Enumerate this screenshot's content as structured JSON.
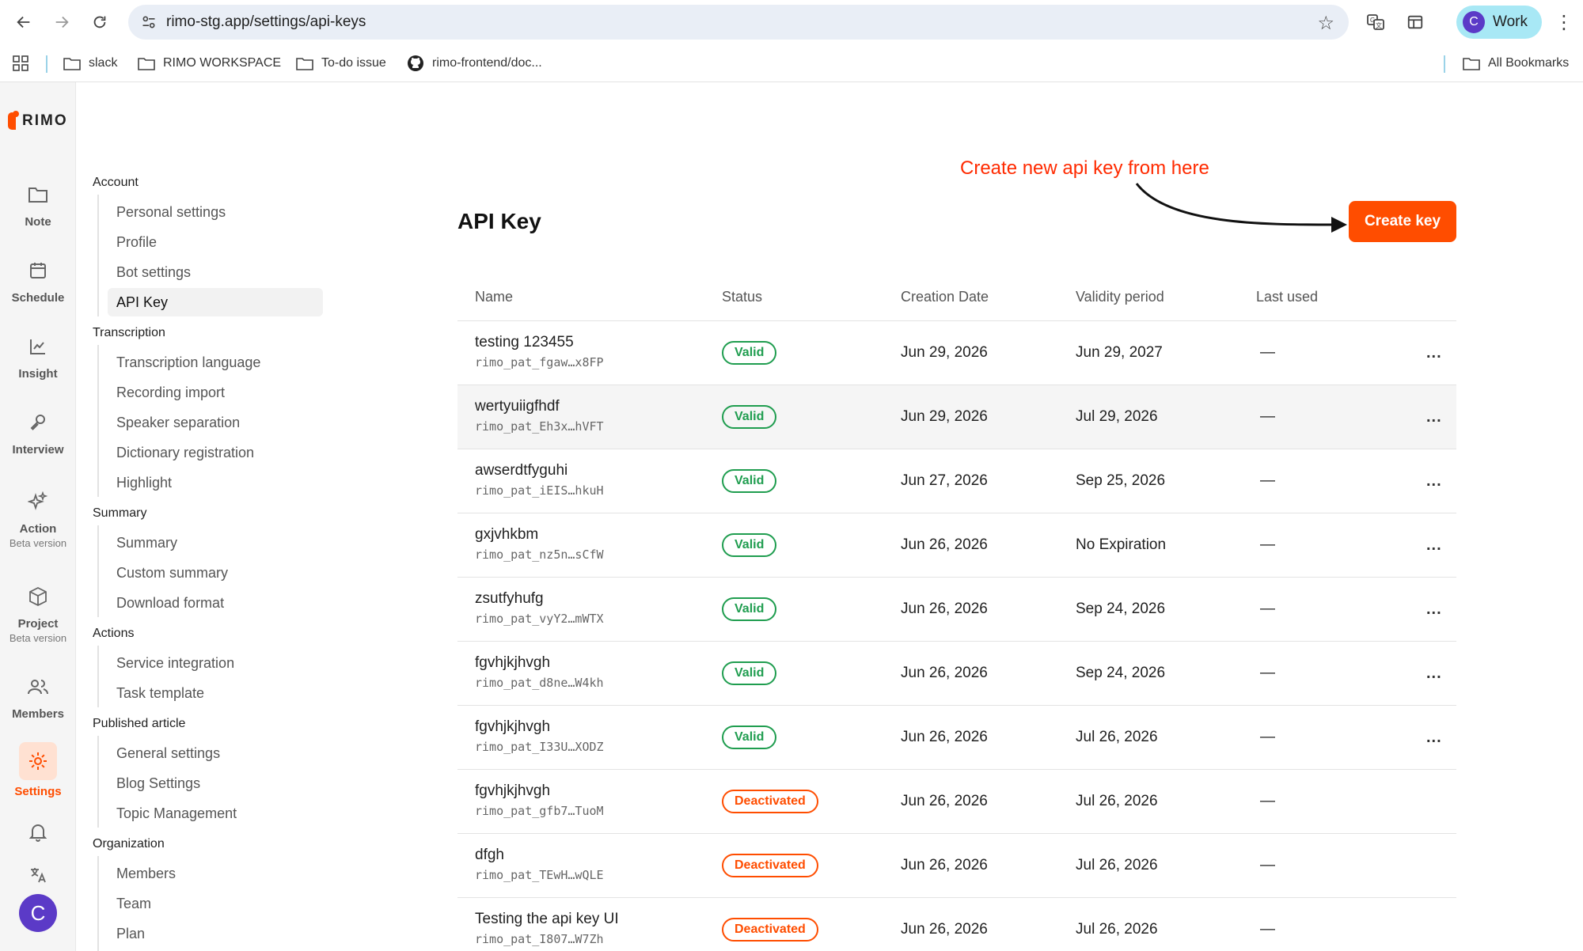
{
  "browser": {
    "url": "rimo-stg.app/settings/api-keys",
    "profile_initial": "C",
    "profile_label": "Work",
    "bookmarks": [
      {
        "label": "slack",
        "icon": "folder-icon"
      },
      {
        "label": "RIMO WORKSPACE",
        "icon": "folder-icon"
      },
      {
        "label": "To-do issue",
        "icon": "folder-icon"
      },
      {
        "label": "rimo-frontend/doc...",
        "icon": "github-icon"
      }
    ],
    "all_bookmarks": "All Bookmarks"
  },
  "app": {
    "logo_text": "RIMO",
    "brand_color": "#ff4d00",
    "rail": [
      {
        "label": "Note",
        "icon": "folder-icon"
      },
      {
        "label": "Schedule",
        "icon": "calendar-icon"
      },
      {
        "label": "Insight",
        "icon": "chart-icon"
      },
      {
        "label": "Interview",
        "icon": "microphone-icon"
      },
      {
        "label": "Action",
        "sub": "Beta version",
        "icon": "sparkle-icon"
      },
      {
        "label": "Project",
        "sub": "Beta version",
        "icon": "package-icon"
      },
      {
        "label": "Members",
        "icon": "users-icon"
      },
      {
        "label": "Settings",
        "icon": "gear-icon"
      }
    ],
    "avatar_initial": "C"
  },
  "settings_nav": {
    "sections": [
      {
        "title": "Account",
        "items": [
          "Personal settings",
          "Profile",
          "Bot settings",
          "API Key"
        ]
      },
      {
        "title": "Transcription",
        "items": [
          "Transcription language",
          "Recording import",
          "Speaker separation",
          "Dictionary registration",
          "Highlight"
        ]
      },
      {
        "title": "Summary",
        "items": [
          "Summary",
          "Custom summary",
          "Download format"
        ]
      },
      {
        "title": "Actions",
        "items": [
          "Service integration",
          "Task template"
        ]
      },
      {
        "title": "Published article",
        "items": [
          "General settings",
          "Blog Settings",
          "Topic Management"
        ]
      },
      {
        "title": "Organization",
        "items": [
          "Members",
          "Team",
          "Plan"
        ]
      }
    ],
    "active_item": "API Key"
  },
  "main": {
    "title": "API Key",
    "annotation": "Create new api key from here",
    "create_button": "Create key",
    "columns": [
      "Name",
      "Status",
      "Creation Date",
      "Validity period",
      "Last used"
    ],
    "rows": [
      {
        "name": "testing 123455",
        "token": "rimo_pat_fgaw…x8FP",
        "status": "Valid",
        "created": "Jun 29, 2026",
        "validity": "Jun 29, 2027",
        "last_used": "—",
        "menu": "..."
      },
      {
        "name": "wertyuiigfhdf",
        "token": "rimo_pat_Eh3x…hVFT",
        "status": "Valid",
        "created": "Jun 29, 2026",
        "validity": "Jul 29, 2026",
        "last_used": "—",
        "menu": "..."
      },
      {
        "name": "awserdtfyguhi",
        "token": "rimo_pat_iEIS…hkuH",
        "status": "Valid",
        "created": "Jun 27, 2026",
        "validity": "Sep 25, 2026",
        "last_used": "—",
        "menu": "..."
      },
      {
        "name": "gxjvhkbm",
        "token": "rimo_pat_nz5n…sCfW",
        "status": "Valid",
        "created": "Jun 26, 2026",
        "validity": "No Expiration",
        "last_used": "—",
        "menu": "..."
      },
      {
        "name": "zsutfyhufg",
        "token": "rimo_pat_vyY2…mWTX",
        "status": "Valid",
        "created": "Jun 26, 2026",
        "validity": "Sep 24, 2026",
        "last_used": "—",
        "menu": "..."
      },
      {
        "name": "fgvhjkjhvgh",
        "token": "rimo_pat_d8ne…W4kh",
        "status": "Valid",
        "created": "Jun 26, 2026",
        "validity": "Sep 24, 2026",
        "last_used": "—",
        "menu": "..."
      },
      {
        "name": "fgvhjkjhvgh",
        "token": "rimo_pat_I33U…XODZ",
        "status": "Valid",
        "created": "Jun 26, 2026",
        "validity": "Jul 26, 2026",
        "last_used": "—",
        "menu": "..."
      },
      {
        "name": "fgvhjkjhvgh",
        "token": "rimo_pat_gfb7…TuoM",
        "status": "Deactivated",
        "created": "Jun 26, 2026",
        "validity": "Jul 26, 2026",
        "last_used": "—",
        "menu": ""
      },
      {
        "name": "dfgh",
        "token": "rimo_pat_TEwH…wQLE",
        "status": "Deactivated",
        "created": "Jun 26, 2026",
        "validity": "Jul 26, 2026",
        "last_used": "—",
        "menu": ""
      },
      {
        "name": "Testing the api key UI",
        "token": "rimo_pat_I807…W7Zh",
        "status": "Deactivated",
        "created": "Jun 26, 2026",
        "validity": "Jul 26, 2026",
        "last_used": "—",
        "menu": ""
      }
    ]
  }
}
